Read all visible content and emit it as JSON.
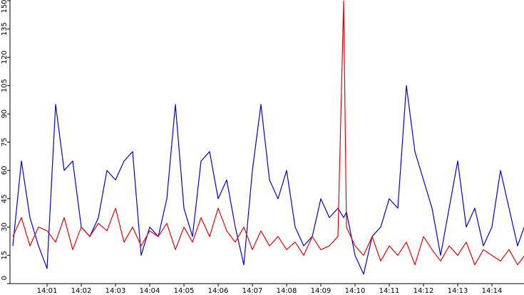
{
  "chart_data": {
    "type": "line",
    "x": [
      "14:00:00",
      "14:00:15",
      "14:00:30",
      "14:00:45",
      "14:01:00",
      "14:01:15",
      "14:01:30",
      "14:01:45",
      "14:02:00",
      "14:02:15",
      "14:02:30",
      "14:02:45",
      "14:03:00",
      "14:03:15",
      "14:03:30",
      "14:03:45",
      "14:04:00",
      "14:04:15",
      "14:04:30",
      "14:04:45",
      "14:05:00",
      "14:05:15",
      "14:05:30",
      "14:05:45",
      "14:06:00",
      "14:06:15",
      "14:06:30",
      "14:06:45",
      "14:07:00",
      "14:07:15",
      "14:07:30",
      "14:07:45",
      "14:08:00",
      "14:08:15",
      "14:08:30",
      "14:08:45",
      "14:09:00",
      "14:09:15",
      "14:09:30",
      "14:09:40",
      "14:09:45",
      "14:10:00",
      "14:10:15",
      "14:10:30",
      "14:10:45",
      "14:11:00",
      "14:11:15",
      "14:11:30",
      "14:11:45",
      "14:12:00",
      "14:12:15",
      "14:12:30",
      "14:12:45",
      "14:13:00",
      "14:13:15",
      "14:13:30",
      "14:13:45",
      "14:14:00",
      "14:14:15",
      "14:14:30",
      "14:14:45",
      "14:15:00"
    ],
    "series": [
      {
        "color": "#0000dd",
        "values": [
          20,
          65,
          35,
          20,
          8,
          95,
          60,
          65,
          30,
          25,
          35,
          60,
          55,
          65,
          70,
          15,
          30,
          25,
          45,
          95,
          40,
          25,
          65,
          70,
          45,
          55,
          30,
          10,
          60,
          95,
          55,
          45,
          60,
          30,
          20,
          25,
          45,
          35,
          40,
          35,
          38,
          15,
          5,
          25,
          30,
          45,
          40,
          105,
          70,
          55,
          40,
          15,
          40,
          65,
          30,
          40,
          20,
          30,
          60,
          40,
          20,
          33
        ]
      },
      {
        "color": "#ee0000",
        "values": [
          25,
          35,
          20,
          30,
          28,
          22,
          35,
          18,
          30,
          25,
          32,
          28,
          40,
          22,
          30,
          20,
          28,
          25,
          32,
          18,
          30,
          22,
          35,
          25,
          40,
          28,
          22,
          30,
          18,
          28,
          20,
          25,
          18,
          22,
          15,
          25,
          18,
          20,
          25,
          150,
          30,
          20,
          15,
          25,
          12,
          20,
          15,
          22,
          10,
          25,
          18,
          12,
          20,
          15,
          22,
          10,
          18,
          15,
          12,
          18,
          10,
          16
        ]
      }
    ],
    "xlim": [
      "14:00:00",
      "14:15:00"
    ],
    "xticks": [
      "14:01",
      "14:02",
      "14:03",
      "14:04",
      "14:05",
      "14:06",
      "14:07",
      "14:08",
      "14:09",
      "14:10",
      "14:11",
      "14:12",
      "14:13",
      "14:14"
    ],
    "ylim": [
      0,
      150
    ],
    "yticks": [
      0,
      15,
      30,
      45,
      60,
      75,
      90,
      105,
      120,
      135,
      150
    ]
  }
}
